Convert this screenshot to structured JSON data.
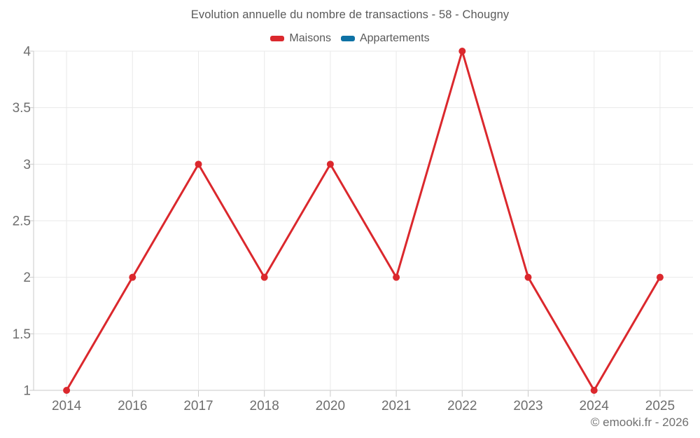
{
  "header": {
    "title": "Evolution annuelle du nombre de transactions - 58 - Chougny"
  },
  "footer": {
    "copyright": "© emooki.fr - 2026"
  },
  "colors": {
    "background": "#ffffff",
    "grid": "#e9e9e9",
    "axis": "#c9c9c9",
    "tick_label": "#6e6e6e",
    "title_text": "#5a5a5a",
    "copyright_text": "#707070",
    "maisons_red": "#db282d",
    "appartements_blue": "#0e72a5"
  },
  "chart_data": {
    "type": "line",
    "title": "Evolution annuelle du nombre de transactions - 58 - Chougny",
    "xlabel": "",
    "ylabel": "",
    "categories": [
      "2014",
      "2016",
      "2017",
      "2018",
      "2020",
      "2021",
      "2022",
      "2023",
      "2024",
      "2025"
    ],
    "series": [
      {
        "name": "Maisons",
        "color": "#db282d",
        "values": [
          1,
          2,
          3,
          2,
          3,
          2,
          4,
          2,
          1,
          2
        ]
      },
      {
        "name": "Appartements",
        "color": "#0e72a5",
        "values": []
      }
    ],
    "ylim": [
      1,
      4
    ],
    "yticks": [
      1,
      1.5,
      2,
      2.5,
      3,
      3.5,
      4
    ],
    "grid": true,
    "legend_position": "top"
  }
}
